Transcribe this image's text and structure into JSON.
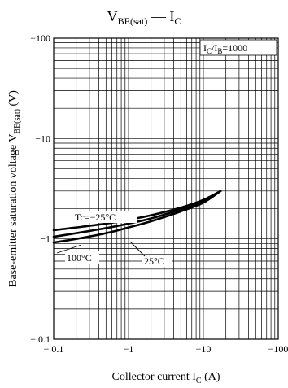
{
  "chart_data": {
    "type": "line",
    "title": {
      "main": "V",
      "main_sub": "BE(sat)",
      "dash": " — I",
      "dash_sub": "C"
    },
    "xlabel": {
      "main": "Collector current  I",
      "sub": "C",
      "tail": "  (A)"
    },
    "ylabel": {
      "main": "Base-emitter saturation voltage  V",
      "sub": "BE(sat)",
      "tail": "  (V)"
    },
    "x_scale": "log",
    "y_scale": "log",
    "xlim": [
      0.1,
      100
    ],
    "ylim": [
      0.1,
      100
    ],
    "x_ticks": [
      {
        "value": 0.1,
        "label": "− 0.1"
      },
      {
        "value": 1,
        "label": "−1"
      },
      {
        "value": 10,
        "label": "−10"
      },
      {
        "value": 100,
        "label": "−100"
      }
    ],
    "y_ticks": [
      {
        "value": 0.1,
        "label": "− 0.1"
      },
      {
        "value": 1,
        "label": "−1"
      },
      {
        "value": 10,
        "label": "−10"
      },
      {
        "value": 100,
        "label": "−100"
      }
    ],
    "grid": true,
    "condition_label": {
      "main": "I",
      "sub1": "C",
      "mid": "/I",
      "sub2": "B",
      "tail": "=1000"
    },
    "series": [
      {
        "name": "Tc=−25°C",
        "x": [
          0.1,
          0.2,
          0.5,
          1,
          2,
          5,
          10,
          17
        ],
        "y": [
          1.22,
          1.3,
          1.42,
          1.55,
          1.72,
          2.05,
          2.45,
          3.0
        ]
      },
      {
        "name": "25°C",
        "x": [
          0.1,
          0.2,
          0.5,
          1,
          2,
          5,
          10,
          17
        ],
        "y": [
          1.05,
          1.14,
          1.28,
          1.42,
          1.6,
          1.97,
          2.38,
          3.0
        ]
      },
      {
        "name": "100°C",
        "x": [
          0.1,
          0.2,
          0.5,
          1,
          2,
          5,
          10,
          17
        ],
        "y": [
          0.92,
          1.0,
          1.14,
          1.3,
          1.5,
          1.88,
          2.3,
          3.0
        ]
      }
    ]
  }
}
